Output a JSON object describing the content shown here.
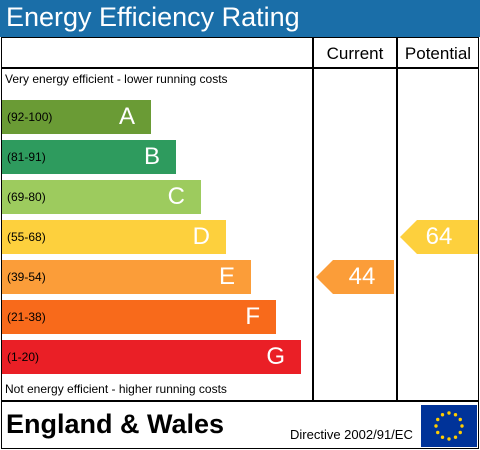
{
  "chart_data": {
    "type": "bar",
    "title": "Energy Efficiency Rating",
    "column_headers": {
      "current": "Current",
      "potential": "Potential"
    },
    "top_note": "Very energy efficient - lower running costs",
    "bottom_note": "Not energy efficient - higher running costs",
    "bands": [
      {
        "letter": "A",
        "range": "(92-100)",
        "min": 92,
        "max": 100,
        "color": "#6a9b35"
      },
      {
        "letter": "B",
        "range": "(81-91)",
        "min": 81,
        "max": 91,
        "color": "#2e9b5e"
      },
      {
        "letter": "C",
        "range": "(69-80)",
        "min": 69,
        "max": 80,
        "color": "#9dcb5e"
      },
      {
        "letter": "D",
        "range": "(55-68)",
        "min": 55,
        "max": 68,
        "color": "#fdd03d"
      },
      {
        "letter": "E",
        "range": "(39-54)",
        "min": 39,
        "max": 54,
        "color": "#fb9d39"
      },
      {
        "letter": "F",
        "range": "(21-38)",
        "min": 21,
        "max": 38,
        "color": "#f86a1b"
      },
      {
        "letter": "G",
        "range": "(1-20)",
        "min": 1,
        "max": 20,
        "color": "#ea1f26"
      }
    ],
    "current": {
      "value": "44",
      "band": "E",
      "color": "#fb9d39"
    },
    "potential": {
      "value": "64",
      "band": "D",
      "color": "#fdd03d"
    }
  },
  "footer": {
    "region": "England & Wales",
    "directive": "Directive 2002/91/EC"
  },
  "colors": {
    "title_bar": "#1a6ea8",
    "eu_blue": "#003399",
    "eu_gold": "#ffcc00"
  },
  "icons": {
    "flag": "eu-flag-icon"
  }
}
